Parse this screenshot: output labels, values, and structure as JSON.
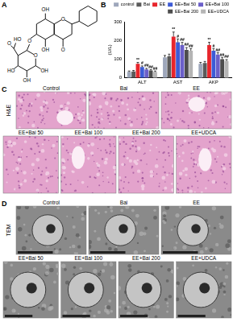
{
  "panel_a": {
    "label": "A",
    "atoms": [
      "OH",
      "OH",
      "O",
      "O",
      "O",
      "O",
      "OH",
      "OH",
      "HO",
      "O",
      "HO"
    ]
  },
  "panel_b": {
    "label": "B"
  },
  "chart_data": {
    "type": "bar",
    "y_label": "(U/L)",
    "categories": [
      "ALT",
      "AST",
      "AKP"
    ],
    "ylim": [
      0,
      300
    ],
    "yticks": [
      0,
      100,
      200,
      300
    ],
    "grid": false,
    "legend": "top",
    "series": [
      {
        "name": "control",
        "color": "#9ea7bb",
        "values": [
          32,
          110,
          75
        ],
        "errors": [
          5,
          10,
          8
        ],
        "significance": [
          null,
          null,
          null
        ]
      },
      {
        "name": "Bai",
        "color": "#5a5a5a",
        "values": [
          35,
          115,
          80
        ],
        "errors": [
          5,
          12,
          8
        ],
        "significance": [
          null,
          null,
          null
        ]
      },
      {
        "name": "EE",
        "color": "#e8252c",
        "values": [
          75,
          220,
          175
        ],
        "errors": [
          8,
          25,
          15
        ],
        "significance": [
          "**",
          "**",
          "**"
        ]
      },
      {
        "name": "EE+Bai 50",
        "color": "#3d5bd6",
        "values": [
          58,
          190,
          145
        ],
        "errors": [
          6,
          18,
          12
        ],
        "significance": [
          "#",
          "#",
          "#"
        ]
      },
      {
        "name": "EE+Bai 100",
        "color": "#6b5fc9",
        "values": [
          45,
          175,
          125
        ],
        "errors": [
          6,
          15,
          10
        ],
        "significance": [
          "##",
          "##",
          "##"
        ]
      },
      {
        "name": "EE+Bai 200",
        "color": "#4d4d4d",
        "values": [
          40,
          150,
          100
        ],
        "errors": [
          5,
          12,
          10
        ],
        "significance": [
          "##",
          "##",
          "##"
        ]
      },
      {
        "name": "EE+UDCA",
        "color": "#b5b5b5",
        "values": [
          32,
          145,
          90
        ],
        "errors": [
          5,
          12,
          8
        ],
        "significance": [
          "##",
          "##",
          "##"
        ]
      }
    ]
  },
  "panel_c": {
    "label": "C",
    "method": "H&E",
    "images": [
      "Control",
      "Bai",
      "EE",
      "EE+Bai 50",
      "EE+Bai 100",
      "EE+Bai 200",
      "EE+UDCA"
    ]
  },
  "panel_d": {
    "label": "D",
    "method": "TEM",
    "images": [
      "Control",
      "Bai",
      "EE",
      "EE+Bai 50",
      "EE+Bai 100",
      "EE+Bai 200",
      "EE+UDCA"
    ]
  }
}
